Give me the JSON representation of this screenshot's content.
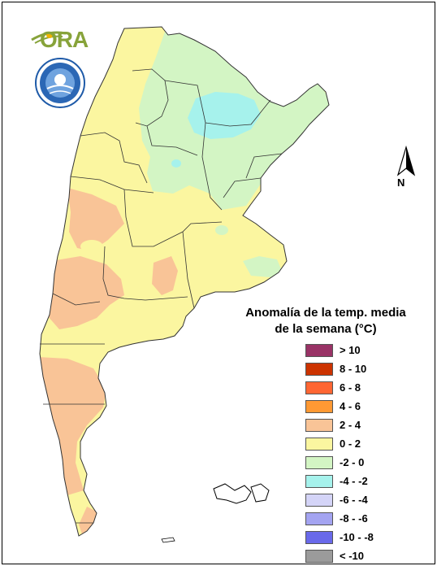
{
  "branding": {
    "ora_logo_text": "ORA",
    "seal_icon": "smn-seal-icon"
  },
  "north_arrow": {
    "icon": "north-arrow-icon",
    "label": "N"
  },
  "legend": {
    "title_line1": "Anomalía de la temp. media",
    "title_line2": "de la semana (°C)",
    "items": [
      {
        "label": "> 10",
        "color": "#993366"
      },
      {
        "label": "8 - 10",
        "color": "#cc3300"
      },
      {
        "label": "6 - 8",
        "color": "#ff6633"
      },
      {
        "label": "4 - 6",
        "color": "#ff9933"
      },
      {
        "label": "2 - 4",
        "color": "#f9c497"
      },
      {
        "label": "0 - 2",
        "color": "#fbf6a0"
      },
      {
        "label": "-2 - 0",
        "color": "#d3f5c4"
      },
      {
        "label": "-4 - -2",
        "color": "#a6f2ec"
      },
      {
        "label": "-6 - -4",
        "color": "#d4d4f7"
      },
      {
        "label": "-8 - -6",
        "color": "#a4a4f1"
      },
      {
        "label": "-10 - -8",
        "color": "#6969ea"
      },
      {
        "label": "< -10",
        "color": "#9b9b9b"
      }
    ]
  }
}
